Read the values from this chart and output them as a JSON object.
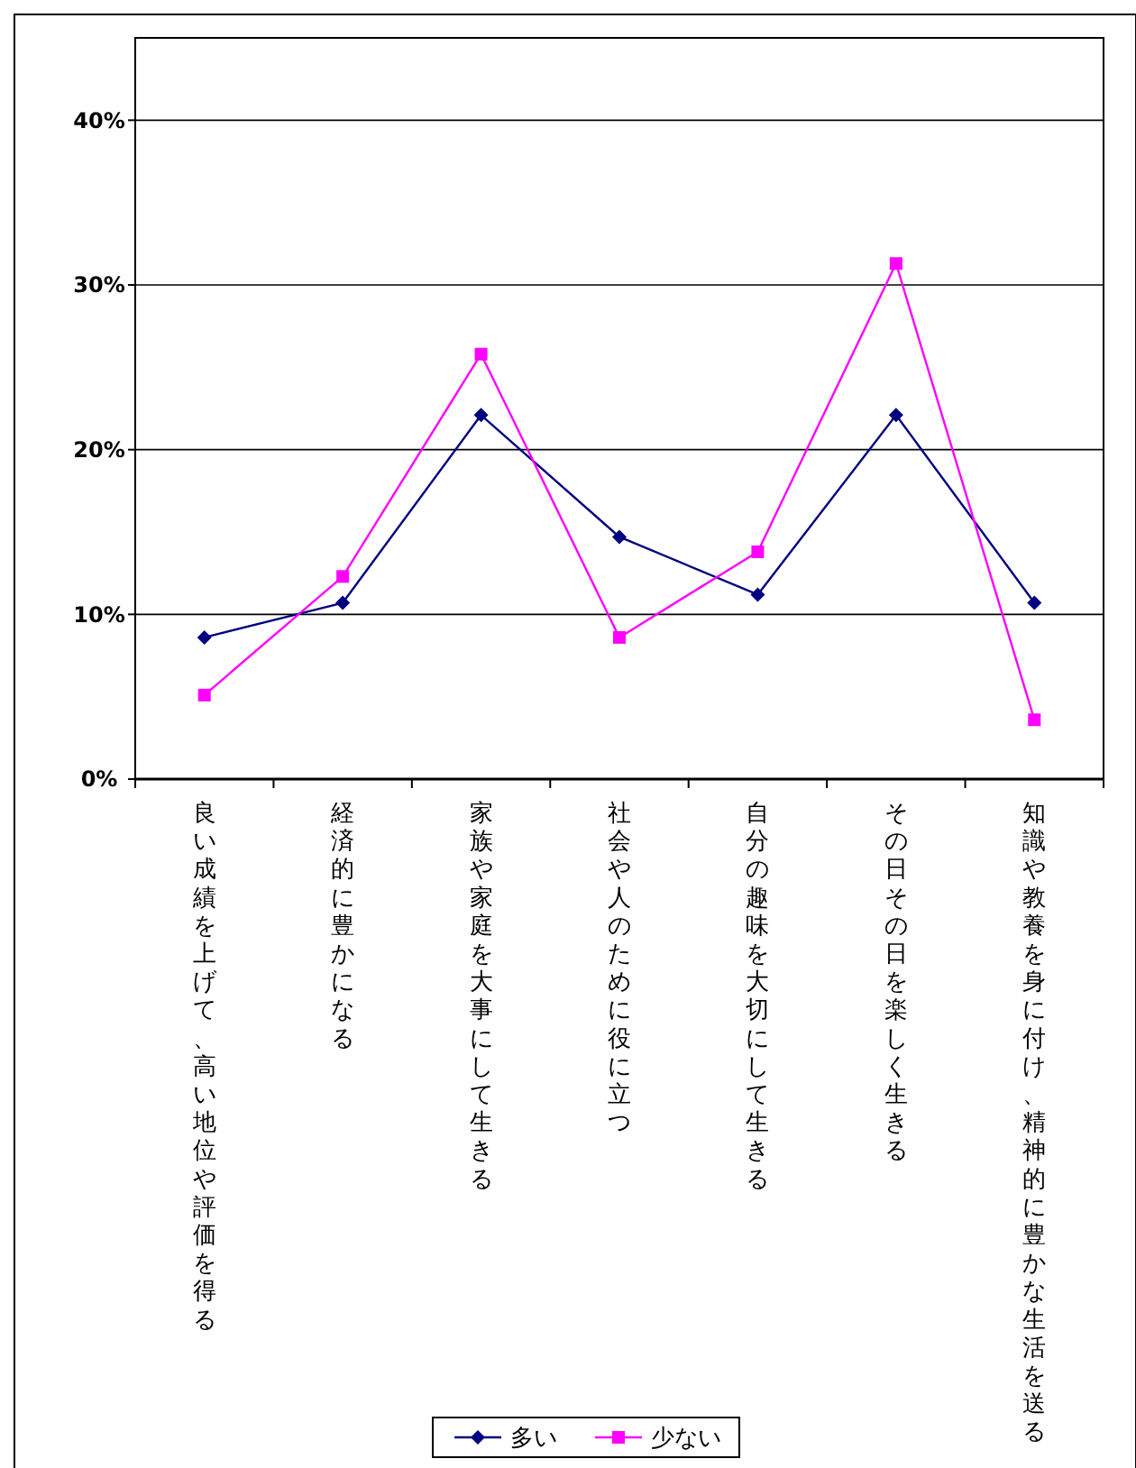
{
  "chart_data": {
    "type": "line",
    "categories": [
      "良い成績を上げて、高い地位や評価を得る",
      "経済的に豊かになる",
      "家族や家庭を大事にして生きる",
      "社会や人のために役に立つ",
      "自分の趣味を大切にして生きる",
      "その日その日を楽しく生きる",
      "知識や教養を身に付け、精神的に豊かな生活を送る"
    ],
    "series": [
      {
        "name": "多い",
        "color": "#000080",
        "marker": "diamond",
        "values": [
          8.6,
          10.7,
          22.1,
          14.7,
          11.2,
          22.1,
          10.7
        ]
      },
      {
        "name": "少ない",
        "color": "#ff00ff",
        "marker": "square",
        "values": [
          5.1,
          12.3,
          25.8,
          8.6,
          13.8,
          31.3,
          3.6
        ]
      }
    ],
    "ylim": [
      0,
      45
    ],
    "yticks": [
      {
        "value": 0,
        "label": "0%"
      },
      {
        "value": 10,
        "label": "10%"
      },
      {
        "value": 20,
        "label": "20%"
      },
      {
        "value": 30,
        "label": "30%"
      },
      {
        "value": 40,
        "label": "40%"
      }
    ],
    "grid": "y",
    "legend": "bottom",
    "line_style": "solid"
  }
}
